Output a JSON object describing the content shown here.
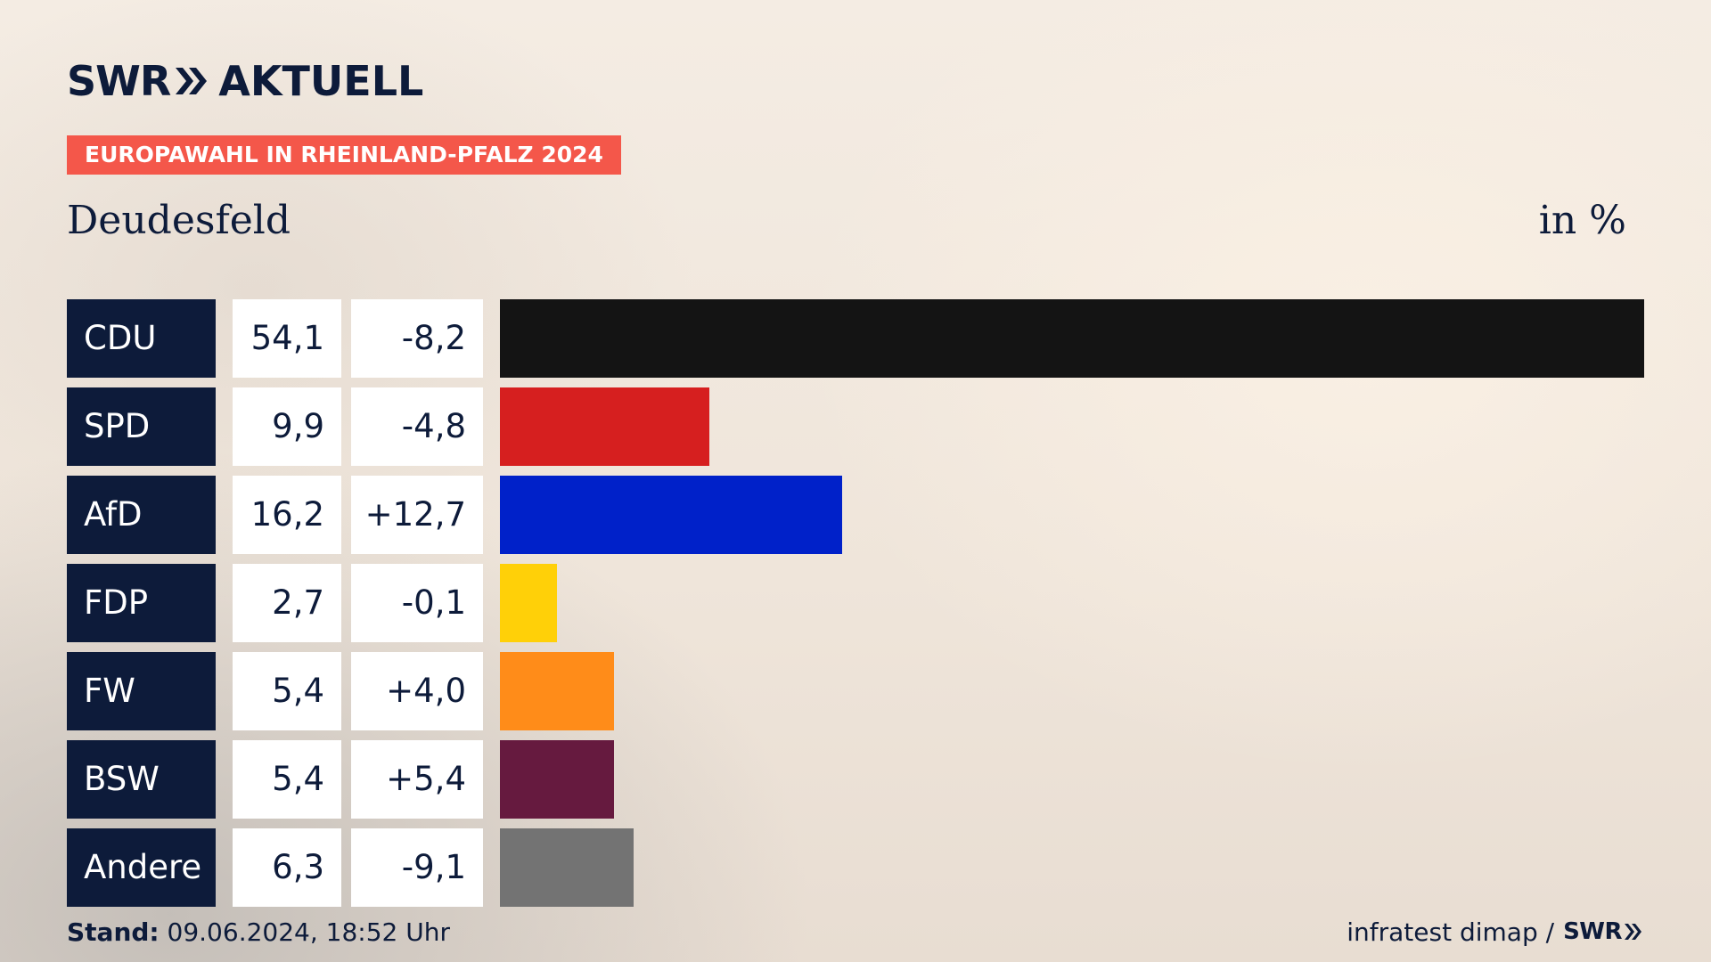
{
  "header": {
    "brand": "SWR",
    "product": "AKTUELL",
    "badge": "EUROPAWAHL IN RHEINLAND-PFALZ 2024",
    "place": "Deudesfeld",
    "unit": "in %"
  },
  "chart_data": {
    "type": "bar",
    "orientation": "horizontal",
    "categories": [
      "CDU",
      "SPD",
      "AfD",
      "FDP",
      "FW",
      "BSW",
      "Andere"
    ],
    "values": [
      54.1,
      9.9,
      16.2,
      2.7,
      5.4,
      5.4,
      6.3
    ],
    "value_labels": [
      "54,1",
      "9,9",
      "16,2",
      "2,7",
      "5,4",
      "5,4",
      "6,3"
    ],
    "changes": [
      -8.2,
      -4.8,
      12.7,
      -0.1,
      4.0,
      5.4,
      -9.1
    ],
    "change_labels": [
      "-8,2",
      "-4,8",
      "+12,7",
      "-0,1",
      "+4,0",
      "+5,4",
      "-9,1"
    ],
    "colors": [
      "#141414",
      "#d61f1f",
      "#0021c9",
      "#ffd008",
      "#ff8c19",
      "#661a3f",
      "#737373"
    ],
    "title": "",
    "xlabel": "",
    "ylabel": "",
    "xlim": [
      0,
      54.1
    ],
    "grid": false
  },
  "footer": {
    "stand_label": "Stand:",
    "stand_value": "09.06.2024, 18:52 Uhr",
    "source": "infratest dimap /",
    "source_brand": "SWR"
  }
}
